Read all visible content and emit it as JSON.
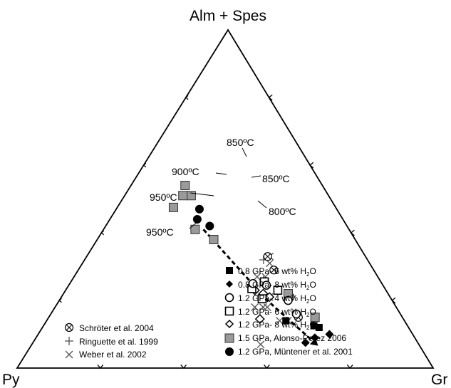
{
  "chart_data": {
    "type": "ternary-scatter",
    "vertices": {
      "top": "Alm + Spes",
      "left": "Py",
      "right": "Gr"
    },
    "legend": [
      {
        "key": "a",
        "symbol": "square-filled",
        "text": "0.8 GPa- 6 wt% H",
        "sub": "2",
        "tail": "O"
      },
      {
        "key": "b",
        "symbol": "diamond-filled",
        "text": "0.8 GPa- 8 wt% H",
        "sub": "2",
        "tail": "O"
      },
      {
        "key": "c",
        "symbol": "circle-open",
        "text": "1.2 GPa- 4 wt% H",
        "sub": "2",
        "tail": "O"
      },
      {
        "key": "d",
        "symbol": "square-open",
        "text": "1.2 GPa- 6 wt% H",
        "sub": "2",
        "tail": "O"
      },
      {
        "key": "e",
        "symbol": "diamond-open",
        "text": "1.2 GPa- 8 wt% H",
        "sub": "2",
        "tail": "O"
      },
      {
        "key": "f",
        "symbol": "square-gray",
        "text": "1.5 GPa, Alonso-Perez 2006",
        "sub": "",
        "tail": ""
      },
      {
        "key": "g",
        "symbol": "circle-filled",
        "text": "1.2 GPa, Müntener et al. 2001",
        "sub": "",
        "tail": ""
      }
    ],
    "legend_left": [
      {
        "key": "s",
        "symbol": "circle-cross",
        "text": "Schröter et al. 2004"
      },
      {
        "key": "r",
        "symbol": "plus",
        "text": "Ringuette et al. 1999"
      },
      {
        "key": "w",
        "symbol": "x",
        "text": "Weber et al. 2002"
      }
    ],
    "annotations": [
      "850ºC",
      "900ºC",
      "850ºC",
      "950ºC",
      "800ºC",
      "950ºC"
    ],
    "series": [
      {
        "key": "a",
        "symbol": "square-filled",
        "points": [
          [
            0.665,
            0.215
          ],
          [
            0.575,
            0.285
          ],
          [
            0.65,
            0.225
          ]
        ]
      },
      {
        "key": "b",
        "symbol": "diamond-filled",
        "points": [
          [
            0.67,
            0.24
          ],
          [
            0.7,
            0.2
          ],
          [
            0.655,
            0.27
          ]
        ]
      },
      {
        "key": "c",
        "symbol": "circle-open",
        "points": [
          [
            0.59,
            0.25
          ],
          [
            0.55,
            0.25
          ],
          [
            0.475,
            0.28
          ],
          [
            0.44,
            0.31
          ]
        ]
      },
      {
        "key": "d",
        "symbol": "square-open",
        "points": [
          [
            0.51,
            0.26
          ],
          [
            0.465,
            0.28
          ],
          [
            0.485,
            0.31
          ],
          [
            0.445,
            0.32
          ]
        ]
      },
      {
        "key": "e",
        "symbol": "diamond-open",
        "points": [
          [
            0.5,
            0.29
          ],
          [
            0.48,
            0.3
          ],
          [
            0.455,
            0.315
          ],
          [
            0.51,
            0.345
          ]
        ]
      },
      {
        "key": "f",
        "symbol": "square-gray",
        "points": [
          [
            0.54,
            0.24
          ],
          [
            0.64,
            0.21
          ],
          [
            0.28,
            0.34
          ],
          [
            0.22,
            0.37
          ],
          [
            0.16,
            0.33
          ],
          [
            0.14,
            0.35
          ],
          [
            0.135,
            0.39
          ],
          [
            0.13,
            0.33
          ]
        ]
      },
      {
        "key": "g",
        "symbol": "circle-filled",
        "points": [
          [
            0.25,
            0.33
          ],
          [
            0.21,
            0.35
          ],
          [
            0.2,
            0.33
          ]
        ]
      },
      {
        "key": "s",
        "symbol": "circle-cross",
        "points": [
          [
            0.6,
            0.25
          ],
          [
            0.55,
            0.24
          ],
          [
            0.47,
            0.24
          ],
          [
            0.435,
            0.235
          ]
        ]
      },
      {
        "key": "r",
        "symbol": "plus",
        "points": [
          [
            0.46,
            0.28
          ],
          [
            0.43,
            0.25
          ]
        ]
      },
      {
        "key": "w",
        "symbol": "x",
        "points": [
          [
            0.46,
            0.27
          ],
          [
            0.56,
            0.3
          ],
          [
            0.44,
            0.23
          ],
          [
            0.5,
            0.29
          ],
          [
            0.58,
            0.28
          ],
          [
            0.51,
            0.31
          ],
          [
            0.45,
            0.24
          ],
          [
            0.44,
            0.29
          ],
          [
            0.48,
            0.34
          ],
          [
            0.5,
            0.32
          ],
          [
            0.55,
            0.38
          ]
        ]
      }
    ],
    "trend_line": [
      [
        0.24,
        0.35
      ],
      [
        0.5,
        0.3
      ],
      [
        0.67,
        0.25
      ]
    ],
    "grid": false
  }
}
